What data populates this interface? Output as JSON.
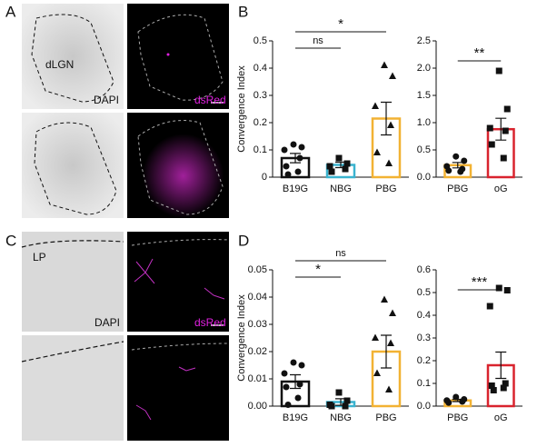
{
  "panels": {
    "labels": [
      "A",
      "B",
      "C",
      "D"
    ],
    "image_texts": {
      "a_region": "dLGN",
      "a_stain": "DAPI",
      "a_red": "dsRed",
      "c_region": "LP",
      "c_stain": "DAPI",
      "c_red": "dsRed"
    }
  },
  "chart_data": [
    {
      "type": "bar",
      "ylabel": "Convergence Index",
      "categories": [
        "B19G",
        "NBG",
        "PBG"
      ],
      "values": [
        0.07,
        0.045,
        0.215
      ],
      "errors": [
        0.017,
        0.01,
        0.06
      ],
      "colors": [
        "#111111",
        "#3ab3cf",
        "#f2b233"
      ],
      "markers": [
        "circle",
        "square",
        "triangle"
      ],
      "points": [
        [
          0.12,
          0.11,
          0.1,
          0.07,
          0.04,
          0.02,
          0.01
        ],
        [
          0.07,
          0.05,
          0.04,
          0.03,
          0.02
        ],
        [
          0.41,
          0.37,
          0.26,
          0.19,
          0.09,
          0.05
        ]
      ],
      "ylim": [
        0,
        0.5
      ],
      "yticks": [
        0,
        0.1,
        0.2,
        0.3,
        0.4,
        0.5
      ],
      "annotations": [
        {
          "text": "ns",
          "between": [
            0,
            1
          ]
        },
        {
          "text": "*",
          "between": [
            0,
            2
          ]
        }
      ]
    },
    {
      "type": "bar",
      "categories": [
        "PBG",
        "oG"
      ],
      "values": [
        0.22,
        0.88
      ],
      "errors": [
        0.05,
        0.2
      ],
      "colors": [
        "#f2b233",
        "#d9232e"
      ],
      "markers": [
        "circle",
        "square"
      ],
      "points": [
        [
          0.38,
          0.3,
          0.2,
          0.15,
          0.12,
          0.1
        ],
        [
          1.95,
          1.25,
          0.9,
          0.85,
          0.6,
          0.35
        ]
      ],
      "ylim": [
        0,
        2.5
      ],
      "yticks": [
        {
          "value": 0,
          "label": "0.0"
        },
        0.5,
        {
          "value": 1,
          "label": "1.0"
        },
        1.5,
        {
          "value": 2,
          "label": "2.0"
        },
        2.5
      ],
      "annotations": [
        {
          "text": "**",
          "between": [
            0,
            1
          ]
        }
      ]
    },
    {
      "type": "bar",
      "ylabel": "Convergence Index",
      "categories": [
        "B19G",
        "NBG",
        "PBG"
      ],
      "values": [
        0.009,
        0.0015,
        0.02
      ],
      "errors": [
        0.0025,
        0.0012,
        0.006
      ],
      "colors": [
        "#111111",
        "#3ab3cf",
        "#f2b233"
      ],
      "markers": [
        "circle",
        "square",
        "triangle"
      ],
      "points": [
        [
          0.016,
          0.015,
          0.012,
          0.008,
          0.007,
          0.003,
          0.0005
        ],
        [
          0.005,
          0.002,
          0.0005,
          0,
          0
        ],
        [
          0.039,
          0.034,
          0.025,
          0.023,
          0.012,
          0.006
        ]
      ],
      "ylim": [
        0,
        0.05
      ],
      "yticks": [
        {
          "value": 0,
          "label": "0.00"
        },
        0.01,
        0.02,
        0.03,
        0.04,
        0.05
      ],
      "annotations": [
        {
          "text": "*",
          "between": [
            0,
            1
          ]
        },
        {
          "text": "ns",
          "between": [
            0,
            2
          ]
        }
      ]
    },
    {
      "type": "bar",
      "categories": [
        "PBG",
        "oG"
      ],
      "values": [
        0.025,
        0.18
      ],
      "errors": [
        0.005,
        0.058
      ],
      "colors": [
        "#f2b233",
        "#d9232e"
      ],
      "markers": [
        "circle",
        "square"
      ],
      "points": [
        [
          0.04,
          0.03,
          0.025,
          0.02,
          0.015
        ],
        [
          0.52,
          0.51,
          0.44,
          0.1,
          0.09,
          0.08,
          0.07
        ]
      ],
      "ylim": [
        0,
        0.6
      ],
      "yticks": [
        {
          "value": 0,
          "label": "0.0"
        },
        0.1,
        0.2,
        0.3,
        0.4,
        0.5,
        0.6
      ],
      "annotations": [
        {
          "text": "***",
          "between": [
            0,
            1
          ]
        }
      ]
    }
  ]
}
